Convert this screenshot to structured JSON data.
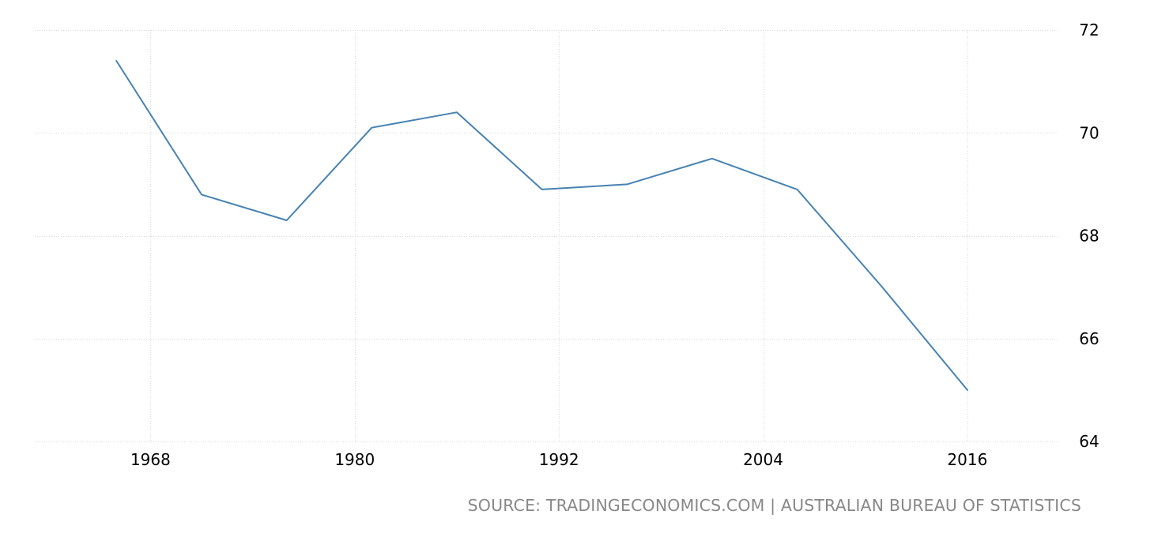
{
  "chart_data": {
    "type": "line",
    "x": [
      1966,
      1971,
      1976,
      1981,
      1986,
      1991,
      1996,
      2001,
      2006,
      2011,
      2016
    ],
    "series": [
      {
        "values": [
          71.4,
          68.8,
          68.3,
          70.1,
          70.4,
          68.9,
          69.0,
          69.5,
          68.9,
          67.0,
          65.0
        ],
        "color": "#4682b4"
      }
    ],
    "x_ticks": [
      "1968",
      "1980",
      "1992",
      "2004",
      "2016"
    ],
    "x_tick_values": [
      1968,
      1980,
      1992,
      2004,
      2016
    ],
    "y_ticks": [
      "72",
      "70",
      "68",
      "66",
      "64"
    ],
    "y_tick_values": [
      72,
      70,
      68,
      66,
      64
    ],
    "ylim": [
      64,
      72
    ],
    "xlim": [
      1961.2,
      2021.3
    ],
    "y_axis_side": "right",
    "grid": true
  },
  "source_text": "SOURCE: TRADINGECONOMICS.COM | AUSTRALIAN BUREAU OF STATISTICS"
}
